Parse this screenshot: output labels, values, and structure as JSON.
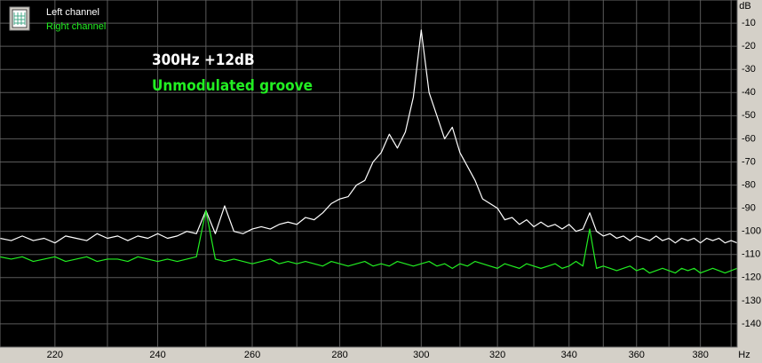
{
  "chart_data": {
    "type": "line",
    "annotations": [
      "300Hz +12dB",
      "Unmodulated groove"
    ],
    "annotation_colors": [
      "#ffffff",
      "#22ee22"
    ],
    "x_unit": "Hz",
    "y_unit": "dB",
    "x_log": true,
    "xlim": [
      210,
      392
    ],
    "ylim": [
      -150,
      0
    ],
    "xticks": [
      220,
      240,
      260,
      280,
      300,
      320,
      340,
      360,
      380
    ],
    "xgrid": [
      220,
      230,
      240,
      250,
      260,
      270,
      280,
      290,
      300,
      310,
      320,
      330,
      340,
      350,
      360,
      370,
      380,
      390
    ],
    "yticks": [
      -10,
      -20,
      -30,
      -40,
      -50,
      -60,
      -70,
      -80,
      -90,
      -100,
      -110,
      -120,
      -130,
      -140
    ],
    "grid": true,
    "x": [
      210,
      212,
      214,
      216,
      218,
      220,
      222,
      224,
      226,
      228,
      230,
      232,
      234,
      236,
      238,
      240,
      242,
      244,
      246,
      248,
      250,
      252,
      254,
      256,
      258,
      260,
      262,
      264,
      266,
      268,
      270,
      272,
      274,
      276,
      278,
      280,
      282,
      284,
      286,
      288,
      290,
      292,
      294,
      296,
      298,
      300,
      302,
      304,
      306,
      308,
      310,
      312,
      314,
      316,
      318,
      320,
      322,
      324,
      326,
      328,
      330,
      332,
      334,
      336,
      338,
      340,
      342,
      344,
      346,
      348,
      350,
      352,
      354,
      356,
      358,
      360,
      362,
      364,
      366,
      368,
      370,
      372,
      374,
      376,
      378,
      380,
      382,
      384,
      386,
      388,
      390,
      392
    ],
    "series": [
      {
        "name": "Left channel",
        "color": "#ffffff",
        "values": [
          -103,
          -104,
          -102,
          -104,
          -103,
          -105,
          -102,
          -103,
          -104,
          -101,
          -103,
          -102,
          -104,
          -102,
          -103,
          -101,
          -103,
          -102,
          -100,
          -101,
          -91,
          -101,
          -89,
          -100,
          -101,
          -99,
          -98,
          -99,
          -97,
          -96,
          -97,
          -94,
          -95,
          -92,
          -88,
          -86,
          -85,
          -80,
          -78,
          -70,
          -66,
          -58,
          -64,
          -57,
          -42,
          -13,
          -40,
          -50,
          -60,
          -55,
          -66,
          -72,
          -78,
          -86,
          -88,
          -90,
          -95,
          -94,
          -97,
          -95,
          -98,
          -96,
          -98,
          -97,
          -99,
          -97,
          -100,
          -99,
          -92,
          -100,
          -102,
          -101,
          -103,
          -102,
          -104,
          -102,
          -103,
          -104,
          -102,
          -104,
          -103,
          -105,
          -103,
          -104,
          -103,
          -105,
          -103,
          -104,
          -103,
          -105,
          -104,
          -105
        ]
      },
      {
        "name": "Right channel",
        "color": "#22ee22",
        "values": [
          -111,
          -112,
          -111,
          -113,
          -112,
          -111,
          -113,
          -112,
          -111,
          -113,
          -112,
          -112,
          -113,
          -111,
          -112,
          -113,
          -112,
          -113,
          -112,
          -111,
          -91,
          -112,
          -113,
          -112,
          -113,
          -114,
          -113,
          -112,
          -114,
          -113,
          -114,
          -113,
          -114,
          -115,
          -113,
          -114,
          -115,
          -114,
          -113,
          -115,
          -114,
          -115,
          -113,
          -114,
          -115,
          -114,
          -113,
          -115,
          -114,
          -116,
          -114,
          -115,
          -113,
          -114,
          -115,
          -116,
          -114,
          -115,
          -116,
          -114,
          -115,
          -116,
          -115,
          -114,
          -116,
          -115,
          -113,
          -115,
          -99,
          -116,
          -115,
          -116,
          -117,
          -116,
          -115,
          -117,
          -116,
          -118,
          -117,
          -116,
          -117,
          -118,
          -116,
          -117,
          -116,
          -118,
          -117,
          -116,
          -117,
          -118,
          -117,
          -116
        ]
      }
    ]
  }
}
